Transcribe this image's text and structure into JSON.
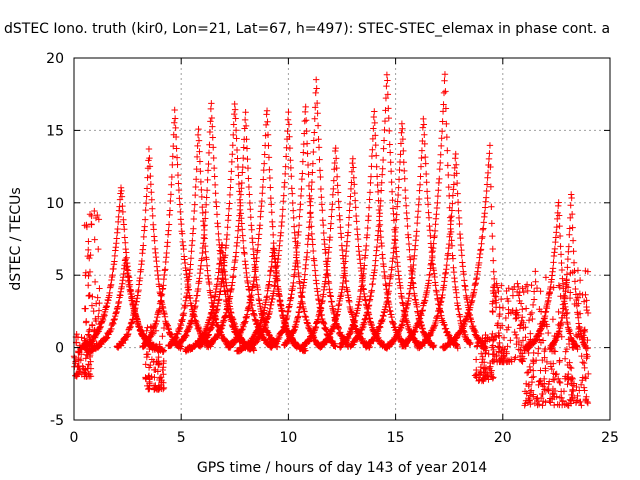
{
  "chart_data": {
    "type": "scatter",
    "title": "dSTEC Iono. truth (kir0, Lon=21, Lat=67, h=497): STEC-STEC_elemax in phase cont. a",
    "xlabel": "GPS time / hours of day 143 of year 2014",
    "ylabel": "dSTEC  / TECUs",
    "xlim": [
      0,
      25
    ],
    "ylim": [
      -5,
      20
    ],
    "xticks": [
      0,
      5,
      10,
      15,
      20,
      25
    ],
    "yticks": [
      -5,
      0,
      5,
      10,
      15,
      20
    ],
    "grid": true,
    "marker": "+",
    "color": "#ff0000",
    "arcs": [
      {
        "start": 0.3,
        "peak_t": 2.2,
        "peak": 11.3,
        "end": 3.8
      },
      {
        "start": 0.6,
        "peak_t": 2.4,
        "peak": 6.2,
        "end": 4.2
      },
      {
        "start": 2.0,
        "peak_t": 3.5,
        "peak": 13.8,
        "end": 5.0
      },
      {
        "start": 3.2,
        "peak_t": 4.7,
        "peak": 16.5,
        "end": 6.4
      },
      {
        "start": 4.4,
        "peak_t": 5.8,
        "peak": 15.3,
        "end": 7.3
      },
      {
        "start": 4.8,
        "peak_t": 6.4,
        "peak": 17.0,
        "end": 8.0
      },
      {
        "start": 5.2,
        "peak_t": 6.9,
        "peak": 7.3,
        "end": 8.4
      },
      {
        "start": 5.8,
        "peak_t": 7.5,
        "peak": 17.1,
        "end": 9.2
      },
      {
        "start": 6.2,
        "peak_t": 8.0,
        "peak": 16.3,
        "end": 9.5
      },
      {
        "start": 7.2,
        "peak_t": 9.0,
        "peak": 16.6,
        "end": 10.4
      },
      {
        "start": 7.6,
        "peak_t": 9.3,
        "peak": 7.0,
        "end": 10.8
      },
      {
        "start": 8.2,
        "peak_t": 10.0,
        "peak": 16.3,
        "end": 11.5
      },
      {
        "start": 9.2,
        "peak_t": 10.8,
        "peak": 17.0,
        "end": 12.2
      },
      {
        "start": 9.8,
        "peak_t": 11.3,
        "peak": 18.7,
        "end": 12.8
      },
      {
        "start": 10.6,
        "peak_t": 12.2,
        "peak": 14.0,
        "end": 13.8
      },
      {
        "start": 11.4,
        "peak_t": 13.0,
        "peak": 13.2,
        "end": 14.6
      },
      {
        "start": 12.4,
        "peak_t": 14.0,
        "peak": 16.6,
        "end": 15.5
      },
      {
        "start": 12.9,
        "peak_t": 14.6,
        "peak": 19.2,
        "end": 16.1
      },
      {
        "start": 13.6,
        "peak_t": 15.3,
        "peak": 15.7,
        "end": 16.8
      },
      {
        "start": 14.6,
        "peak_t": 16.3,
        "peak": 16.0,
        "end": 17.9
      },
      {
        "start": 15.3,
        "peak_t": 17.3,
        "peak": 19.0,
        "end": 18.5
      },
      {
        "start": 16.0,
        "peak_t": 17.8,
        "peak": 13.5,
        "end": 19.2
      },
      {
        "start": 17.2,
        "peak_t": 19.4,
        "peak": 14.0,
        "end": 19.7
      },
      {
        "start": 21.0,
        "peak_t": 22.6,
        "peak": 10.2,
        "end": 23.5
      },
      {
        "start": 22.2,
        "peak_t": 23.2,
        "peak": 11.0,
        "end": 23.9
      }
    ],
    "noise_segments": [
      {
        "t0": 0.0,
        "t1": 0.8,
        "lo": -2.0,
        "hi": 1.0
      },
      {
        "t0": 0.5,
        "t1": 1.2,
        "lo": 0.0,
        "hi": 9.5
      },
      {
        "t0": 3.3,
        "t1": 4.2,
        "lo": -2.9,
        "hi": 1.5
      },
      {
        "t0": 18.7,
        "t1": 19.6,
        "lo": -2.3,
        "hi": 1.0
      },
      {
        "t0": 19.5,
        "t1": 21.0,
        "lo": -1.0,
        "hi": 4.5
      },
      {
        "t0": 21.0,
        "t1": 24.0,
        "lo": -4.0,
        "hi": 5.5
      }
    ]
  }
}
